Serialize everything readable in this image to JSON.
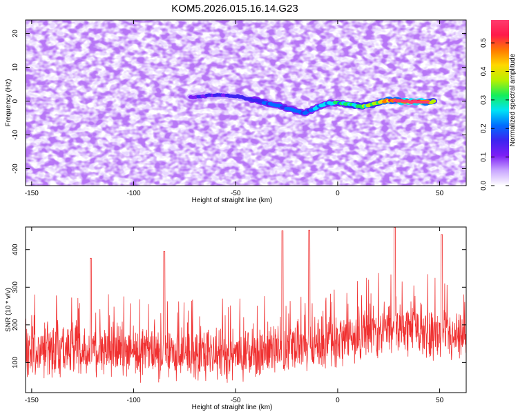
{
  "title": "KOM5.2026.015.16.14.G23",
  "chart_data": [
    {
      "type": "heatmap",
      "title": "KOM5.2026.015.16.14.G23",
      "xlabel": "Height of straight line (km)",
      "ylabel": "Frequency (Hz)",
      "xlim": [
        -153,
        63
      ],
      "ylim": [
        -25,
        24
      ],
      "x_ticks": [
        -150,
        -100,
        -50,
        0,
        50
      ],
      "x_tick_labels": [
        "-150",
        "-100",
        "-50",
        "0",
        "50"
      ],
      "y_ticks": [
        -20,
        -10,
        0,
        10,
        20
      ],
      "y_tick_labels": [
        "-20",
        "-10",
        "0",
        "10",
        "20"
      ],
      "ridge": {
        "description": "high-amplitude signal track",
        "x": [
          -72,
          -60,
          -50,
          -40,
          -30,
          -22,
          -17,
          -12,
          -6,
          0,
          6,
          12,
          18,
          24,
          30,
          36,
          42,
          47
        ],
        "y": [
          1.2,
          1.8,
          1.5,
          0.2,
          -1.2,
          -2.6,
          -3.6,
          -2.4,
          -0.8,
          -0.4,
          -1.0,
          -1.6,
          -0.8,
          0.2,
          0.1,
          -0.2,
          -0.3,
          -0.2
        ],
        "amplitude": [
          0.12,
          0.14,
          0.16,
          0.18,
          0.2,
          0.22,
          0.2,
          0.22,
          0.26,
          0.28,
          0.3,
          0.34,
          0.38,
          0.45,
          0.52,
          0.56,
          0.55,
          0.4
        ]
      },
      "colorbar": {
        "label": "Normalized spectral amplitude",
        "range": [
          0.0,
          0.58
        ],
        "ticks": [
          0.0,
          0.1,
          0.2,
          0.3,
          0.4,
          0.5
        ],
        "tick_labels": [
          "0.0",
          "0.1",
          "0.2",
          "0.3",
          "0.4",
          "0.5"
        ],
        "colors": [
          "#ffffff",
          "#c9a6ff",
          "#7d1ff5",
          "#3d24f0",
          "#006dff",
          "#00e4f5",
          "#15ee5a",
          "#b8f000",
          "#ffd800",
          "#ff7a00",
          "#ff1a4a",
          "#ff3b6e"
        ]
      }
    },
    {
      "type": "line",
      "xlabel": "Height of straight line (km)",
      "ylabel": "SNR (10 * v/v)",
      "xlim": [
        -153,
        63
      ],
      "ylim": [
        20,
        460
      ],
      "x_ticks": [
        -150,
        -100,
        -50,
        0,
        50
      ],
      "x_tick_labels": [
        "-150",
        "-100",
        "-50",
        "0",
        "50"
      ],
      "y_ticks": [
        100,
        200,
        300,
        400
      ],
      "y_tick_labels": [
        "100",
        "200",
        "300",
        "400"
      ],
      "series": [
        {
          "name": "SNR",
          "color": "#f03030",
          "trend": {
            "x": [
              -153,
              -120,
              -90,
              -60,
              -40,
              -20,
              0,
              10,
              20,
              30,
              40,
              50,
              63
            ],
            "y": [
              130,
              130,
              122,
              118,
              130,
              140,
              155,
              170,
              185,
              195,
              190,
              170,
              150
            ]
          },
          "spread": 55,
          "peaks": {
            "x": [
              -121,
              -85,
              -27,
              -14,
              28,
              51
            ],
            "y": [
              377,
              395,
              450,
              452,
              460,
              440
            ]
          }
        }
      ]
    }
  ]
}
